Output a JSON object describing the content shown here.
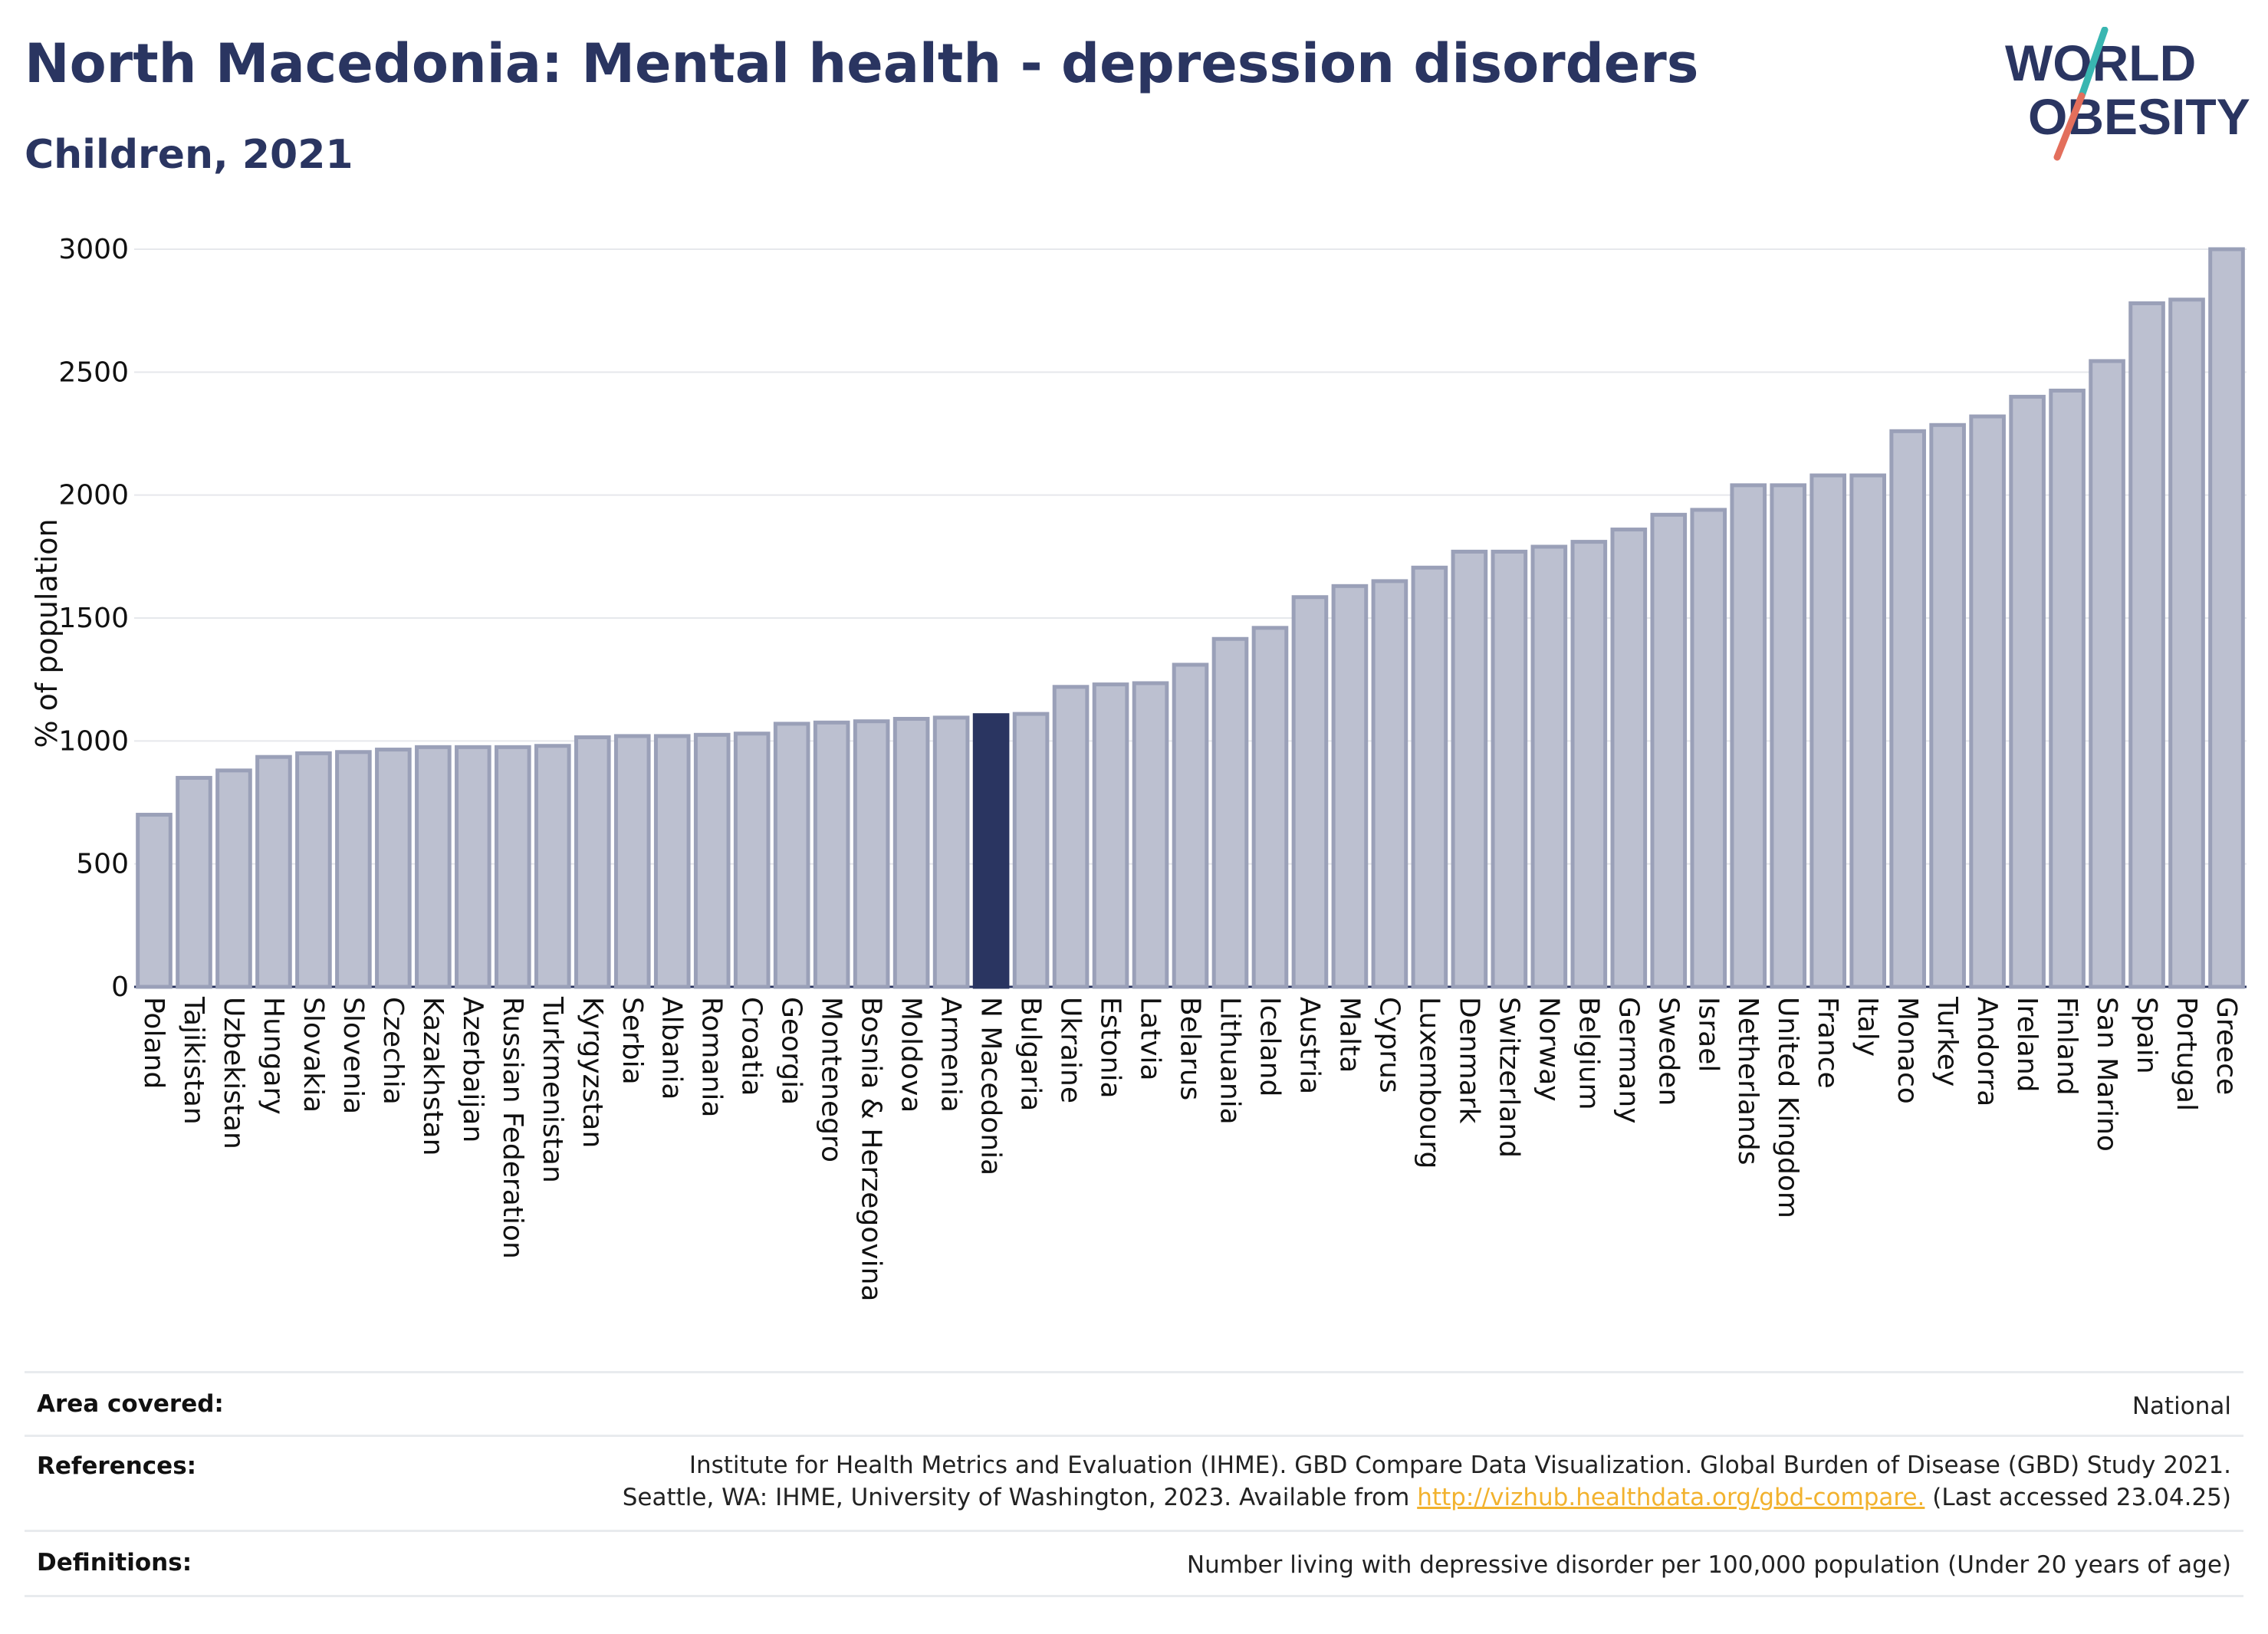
{
  "header": {
    "title": "North Macedonia: Mental health - depression disorders",
    "subtitle": "Children, 2021",
    "logo_line1": "WORLD",
    "logo_line2": "OBESITY"
  },
  "colors": {
    "bar": "#bcc0d0",
    "bar_stroke": "#9aa0b8",
    "highlight": "#2a3561",
    "axis_text": "#111111",
    "grid": "#e6e8ec",
    "link": "#f2b22e"
  },
  "chart_data": {
    "type": "bar",
    "title": "North Macedonia: Mental health - depression disorders",
    "subtitle": "Children, 2021",
    "xlabel": "",
    "ylabel": "% of population",
    "ylim": [
      0,
      3000
    ],
    "yticks": [
      0,
      500,
      1000,
      1500,
      2000,
      2500,
      3000
    ],
    "grid": true,
    "highlight": "N Macedonia",
    "categories": [
      "Poland",
      "Tajikistan",
      "Uzbekistan",
      "Hungary",
      "Slovakia",
      "Slovenia",
      "Czechia",
      "Kazakhstan",
      "Azerbaijan",
      "Russian Federation",
      "Turkmenistan",
      "Kyrgyzstan",
      "Serbia",
      "Albania",
      "Romania",
      "Croatia",
      "Georgia",
      "Montenegro",
      "Bosnia & Herzegovina",
      "Moldova",
      "Armenia",
      "N Macedonia",
      "Bulgaria",
      "Ukraine",
      "Estonia",
      "Latvia",
      "Belarus",
      "Lithuania",
      "Iceland",
      "Austria",
      "Malta",
      "Cyprus",
      "Luxembourg",
      "Denmark",
      "Switzerland",
      "Norway",
      "Belgium",
      "Germany",
      "Sweden",
      "Israel",
      "Netherlands",
      "United Kingdom",
      "France",
      "Italy",
      "Monaco",
      "Turkey",
      "Andorra",
      "Ireland",
      "Finland",
      "San Marino",
      "Spain",
      "Portugal",
      "Greece"
    ],
    "values": [
      700,
      850,
      880,
      935,
      950,
      955,
      965,
      975,
      975,
      975,
      980,
      1015,
      1020,
      1020,
      1025,
      1030,
      1070,
      1075,
      1080,
      1090,
      1095,
      1105,
      1110,
      1220,
      1230,
      1235,
      1310,
      1415,
      1460,
      1585,
      1630,
      1650,
      1705,
      1770,
      1770,
      1790,
      1810,
      1860,
      1920,
      1940,
      2040,
      2040,
      2080,
      2080,
      2260,
      2285,
      2320,
      2400,
      2425,
      2545,
      2780,
      2795,
      3000
    ]
  },
  "footer": {
    "area_label": "Area covered:",
    "area_value": "National",
    "references_label": "References:",
    "references_line1": "Institute for Health Metrics and Evaluation (IHME). GBD Compare Data Visualization. Global Burden of Disease (GBD) Study 2021.",
    "references_line2_pre": "Seattle, WA: IHME, University of Washington, 2023. Available from ",
    "references_link": "http://vizhub.healthdata.org/gbd-compare.",
    "references_line2_post": " (Last accessed 23.04.25)",
    "definitions_label": "Definitions:",
    "definitions_value": "Number living with depressive disorder per 100,000 population (Under 20 years of age)"
  }
}
